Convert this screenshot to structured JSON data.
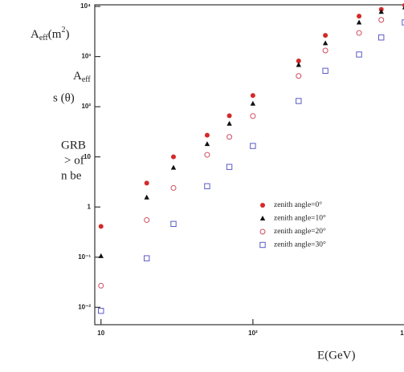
{
  "chart_data": {
    "type": "scatter",
    "ylabel": {
      "base": "A",
      "sub": "eff",
      "unit": "(m",
      "sup": "2",
      "close": ")"
    },
    "xlabel": "E(GeV)",
    "x": [
      10,
      20,
      30,
      50,
      70,
      100,
      200,
      300,
      500,
      700,
      1000
    ],
    "series": [
      {
        "name": "zenith angle=0°",
        "color": "#d42a2a",
        "marker": "circle-filled",
        "values": [
          0.41,
          3.0,
          10,
          27,
          66,
          167,
          820,
          2650,
          6400,
          8700,
          10500
        ]
      },
      {
        "name": "zenith angle=10°",
        "color": "#111111",
        "marker": "triangle-filled",
        "values": [
          0.105,
          1.55,
          6.1,
          18,
          46,
          115,
          680,
          1850,
          4800,
          7800,
          9600
        ]
      },
      {
        "name": "zenith angle=20°",
        "color": "#d04a60",
        "marker": "circle-open",
        "values": [
          0.027,
          0.55,
          2.4,
          11,
          25,
          65,
          410,
          1320,
          2960,
          5400,
          null
        ]
      },
      {
        "name": "zenith angle=30°",
        "color": "#5a5ac8",
        "marker": "square-open",
        "values": [
          0.0085,
          0.095,
          0.46,
          2.6,
          6.3,
          16.5,
          130,
          520,
          1100,
          2400,
          4800
        ]
      }
    ],
    "xlog": true,
    "ylog": true,
    "xlim": [
      9.1,
      1000
    ],
    "ylim": [
      0.0045,
      10000
    ],
    "xticks": [
      10,
      {
        "value": 100,
        "label": "10²"
      },
      {
        "value": 1000,
        "label": "10³"
      }
    ],
    "yticks": [
      {
        "value": 0.01,
        "label": "10⁻²"
      },
      {
        "value": 0.1,
        "label": "10⁻¹"
      },
      1,
      10,
      {
        "value": 100,
        "label": "10²"
      },
      {
        "value": 1000,
        "label": "10³"
      },
      {
        "value": 10000,
        "label": "10⁴"
      }
    ]
  },
  "side_text": {
    "symbol": {
      "base": "A",
      "sub": "eff"
    },
    "lines": [
      "s (θ)",
      "GRB",
      "> of",
      "n be"
    ]
  }
}
